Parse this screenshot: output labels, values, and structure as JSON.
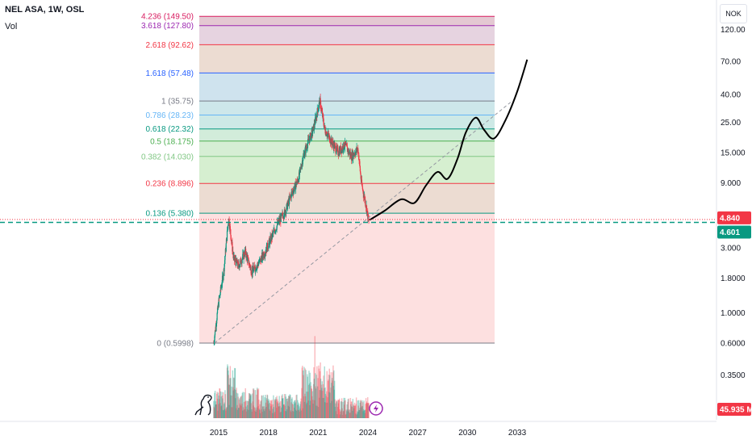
{
  "header": {
    "title": "NEL ASA, 1W, OSL",
    "volume_label": "Vol",
    "currency": "NOK"
  },
  "price_badges": {
    "last": {
      "value": "4.840",
      "color": "#f23645"
    },
    "level": {
      "value": "4.601",
      "color": "#089981"
    },
    "volume": {
      "value": "45.935 M",
      "color": "#f23645"
    }
  },
  "chart_data": {
    "type": "line",
    "scale": "log",
    "y_ticks": [
      "120.00",
      "70.00",
      "40.00",
      "25.00",
      "15.000",
      "9.000",
      "3.000",
      "1.8000",
      "1.0000",
      "0.6000",
      "0.3500"
    ],
    "y_tick_values": [
      120,
      70,
      40,
      25,
      15,
      9,
      3,
      1.8,
      1.0,
      0.6,
      0.35
    ],
    "x_ticks": [
      "2015",
      "2018",
      "2021",
      "2024",
      "2027",
      "2030",
      "2033"
    ],
    "x_tick_values": [
      2015,
      2018,
      2021,
      2024,
      2027,
      2030,
      2033
    ],
    "fib_levels": [
      {
        "label": "4.236 (149.50)",
        "value": 149.5,
        "color": "#d81b60",
        "band": "#e4c8d2"
      },
      {
        "label": "3.618 (127.80)",
        "value": 127.8,
        "color": "#9c27b0",
        "band": "#e6d3e0"
      },
      {
        "label": "2.618 (92.62)",
        "value": 92.62,
        "color": "#f23645",
        "band": "#ecdcd2"
      },
      {
        "label": "1.618 (57.48)",
        "value": 57.48,
        "color": "#2962ff",
        "band": "#cfe3ee"
      },
      {
        "label": "1 (35.75)",
        "value": 35.75,
        "color": "#787b86",
        "band": "#cde7ea"
      },
      {
        "label": "0.786 (28.23)",
        "value": 28.23,
        "color": "#64b5f6",
        "band": "#cde9e6"
      },
      {
        "label": "0.618 (22.32)",
        "value": 22.32,
        "color": "#089981",
        "band": "#d2ecda"
      },
      {
        "label": "0.5 (18.175)",
        "value": 18.175,
        "color": "#4caf50",
        "band": "#d6eed4"
      },
      {
        "label": "0.382 (14.030)",
        "value": 14.03,
        "color": "#81c784",
        "band": "#d6efd0"
      },
      {
        "label": "0.236 (8.896)",
        "value": 8.896,
        "color": "#f23645",
        "band": "#ecdcd2"
      },
      {
        "label": "0.136 (5.380)",
        "value": 5.38,
        "color": "#089981",
        "band": "#fde0e0"
      },
      {
        "label": "0 (0.5998)",
        "value": 0.5998,
        "color": "#787b86",
        "band": null
      }
    ],
    "price_series": {
      "x": [
        2014.7,
        2015.0,
        2015.3,
        2015.6,
        2015.9,
        2016.2,
        2016.6,
        2017.0,
        2017.4,
        2017.8,
        2018.2,
        2018.6,
        2019.0,
        2019.4,
        2019.8,
        2020.1,
        2020.4,
        2020.7,
        2020.95,
        2021.1,
        2021.4,
        2021.8,
        2022.2,
        2022.6,
        2023.0,
        2023.4,
        2023.6,
        2023.9,
        2024.05
      ],
      "y": [
        0.6,
        1.2,
        2.0,
        5.0,
        2.5,
        2.2,
        2.8,
        2.0,
        2.3,
        2.8,
        3.6,
        4.6,
        5.5,
        7.5,
        9.5,
        14,
        18,
        22,
        30,
        36,
        22,
        18,
        15,
        17,
        14,
        16,
        9,
        6,
        4.6
      ]
    },
    "projection": {
      "x": [
        2024.1,
        2025.0,
        2026.0,
        2026.8,
        2027.5,
        2028.2,
        2028.8,
        2029.4,
        2029.9,
        2030.5,
        2031.0,
        2031.6,
        2032.3,
        2033.0,
        2033.6
      ],
      "y": [
        4.8,
        5.6,
        6.8,
        6.4,
        8.6,
        10.8,
        9.6,
        13.5,
        21,
        27,
        22,
        19,
        26,
        42,
        72
      ]
    },
    "trendline": {
      "x": [
        2014.75,
        2032.6
      ],
      "y": [
        0.6,
        35.0
      ]
    },
    "horizontal_line": {
      "value": 4.601
    }
  }
}
